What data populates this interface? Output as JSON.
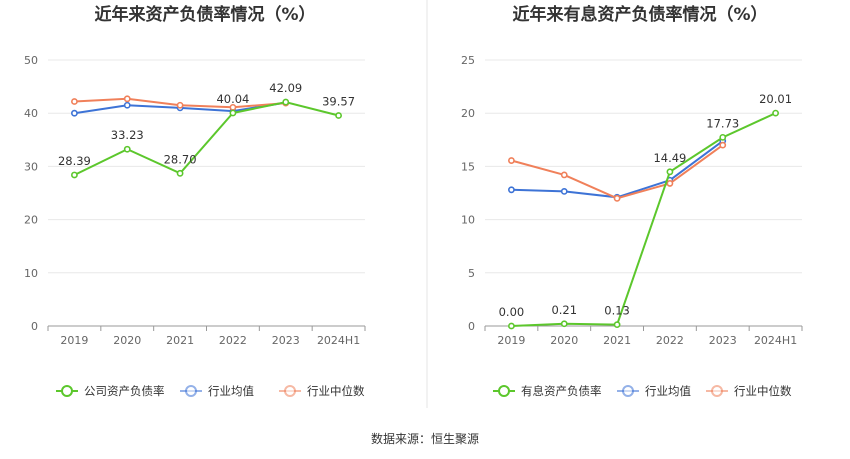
{
  "footer": {
    "source": "数据来源：恒生聚源"
  },
  "chart_data": [
    {
      "type": "line",
      "title": "近年来资产负债率情况（%）",
      "categories": [
        "2019",
        "2020",
        "2021",
        "2022",
        "2023",
        "2024H1"
      ],
      "ylim": [
        0,
        50
      ],
      "yticks": [
        0,
        10,
        20,
        30,
        40,
        50
      ],
      "grid": true,
      "legend_position": "bottom",
      "series": [
        {
          "name": "公司资产负债率",
          "color": "#5cc72c",
          "labeled": true,
          "values": [
            28.39,
            33.23,
            28.7,
            40.04,
            42.09,
            39.57
          ],
          "labels": [
            "28.39",
            "33.23",
            "28.70",
            "40.04",
            "42.09",
            "39.57"
          ]
        },
        {
          "name": "行业均值",
          "color": "#3d73d6",
          "labeled": false,
          "values": [
            40.0,
            41.5,
            41.0,
            40.4,
            42.0,
            null
          ]
        },
        {
          "name": "行业中位数",
          "color": "#f0805a",
          "labeled": false,
          "values": [
            42.2,
            42.7,
            41.5,
            41.1,
            41.9,
            null
          ]
        }
      ]
    },
    {
      "type": "line",
      "title": "近年来有息资产负债率情况（%）",
      "categories": [
        "2019",
        "2020",
        "2021",
        "2022",
        "2023",
        "2024H1"
      ],
      "ylim": [
        0,
        25
      ],
      "yticks": [
        0,
        5,
        10,
        15,
        20,
        25
      ],
      "grid": true,
      "legend_position": "bottom",
      "series": [
        {
          "name": "有息资产负债率",
          "color": "#5cc72c",
          "labeled": true,
          "values": [
            0.0,
            0.21,
            0.13,
            14.49,
            17.73,
            20.01
          ],
          "labels": [
            "0.00",
            "0.21",
            "0.13",
            "14.49",
            "17.73",
            "20.01"
          ]
        },
        {
          "name": "行业均值",
          "color": "#3d73d6",
          "labeled": false,
          "values": [
            12.8,
            12.65,
            12.1,
            13.7,
            17.4,
            null
          ]
        },
        {
          "name": "行业中位数",
          "color": "#f0805a",
          "labeled": false,
          "values": [
            15.55,
            14.2,
            12.0,
            13.4,
            17.0,
            null
          ]
        }
      ]
    }
  ]
}
